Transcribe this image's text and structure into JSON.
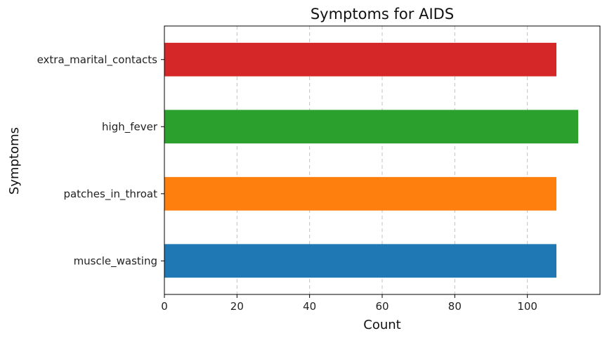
{
  "chart_data": {
    "type": "bar",
    "orientation": "horizontal",
    "title": "Symptoms for AIDS",
    "xlabel": "Count",
    "ylabel": "Symptoms",
    "categories": [
      "muscle_wasting",
      "patches_in_throat",
      "high_fever",
      "extra_marital_contacts"
    ],
    "values": [
      108,
      108,
      114,
      108
    ],
    "colors": [
      "#1f77b4",
      "#ff7f0e",
      "#2ca02c",
      "#d62728"
    ],
    "xlim": [
      0,
      120
    ],
    "xticks": [
      0,
      20,
      40,
      60,
      80,
      100
    ],
    "grid": "x-dashed"
  }
}
